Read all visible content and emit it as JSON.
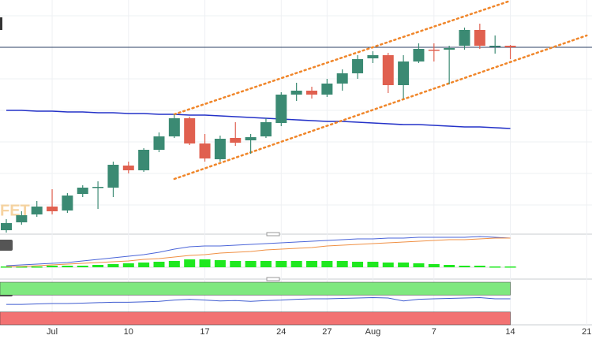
{
  "chart_data": {
    "type": "candlestick",
    "watermark": "FET",
    "categories": [
      null,
      null,
      null,
      "Jul",
      null,
      null,
      null,
      null,
      "10",
      null,
      null,
      null,
      null,
      "17",
      null,
      null,
      null,
      null,
      "24",
      null,
      null,
      "27",
      null,
      null,
      "Aug",
      null,
      null,
      null,
      "7",
      null,
      null,
      null,
      null,
      "14",
      null,
      null,
      null,
      null,
      "21"
    ],
    "ylim": [
      0,
      300
    ],
    "open": [
      8,
      18,
      28,
      38,
      33,
      54,
      63,
      62,
      90,
      84,
      110,
      127,
      150,
      118,
      98,
      125,
      122,
      127,
      144,
      180,
      185,
      180,
      194,
      207,
      226,
      230,
      192,
      222,
      237,
      237,
      242,
      262,
      242,
      242,
      null,
      null,
      null,
      null,
      null
    ],
    "high": [
      22,
      32,
      45,
      60,
      55,
      65,
      70,
      95,
      95,
      112,
      132,
      155,
      152,
      130,
      128,
      145,
      130,
      150,
      183,
      195,
      190,
      200,
      212,
      230,
      235,
      233,
      230,
      245,
      245,
      242,
      265,
      270,
      255,
      243,
      null,
      null,
      null,
      null,
      null
    ],
    "low": [
      5,
      15,
      25,
      28,
      30,
      50,
      35,
      50,
      80,
      82,
      107,
      125,
      116,
      95,
      95,
      115,
      105,
      125,
      140,
      172,
      175,
      177,
      185,
      200,
      220,
      182,
      175,
      220,
      222,
      193,
      237,
      238,
      232,
      225,
      null,
      null,
      null,
      null,
      null
    ],
    "close": [
      17,
      27,
      38,
      32,
      52,
      62,
      63,
      91,
      84,
      110,
      127,
      150,
      118,
      99,
      124,
      119,
      126,
      145,
      180,
      185,
      180,
      194,
      207,
      225,
      230,
      192,
      222,
      238,
      236,
      239,
      262,
      242,
      242,
      240,
      null,
      null,
      null,
      null,
      null
    ],
    "up_color": "#3b8a73",
    "down_color": "#e0604f",
    "moving_average": {
      "color": "#2432c8",
      "values": [
        160,
        160,
        159,
        159,
        158,
        158,
        157,
        157,
        156,
        156,
        155,
        155,
        154,
        154,
        153,
        152,
        151,
        150,
        149,
        148,
        147,
        146,
        146,
        145,
        144,
        143,
        142,
        142,
        141,
        140,
        139,
        139,
        138,
        137,
        null,
        null,
        null,
        null,
        null
      ]
    },
    "price_line": {
      "value": 240,
      "color": "#2b3f63"
    },
    "channel": {
      "color": "#f0862a",
      "upper": {
        "from": [
          11,
          155
        ],
        "to": [
          33,
          299
        ]
      },
      "lower": {
        "from": [
          11,
          73
        ],
        "to": [
          38,
          255
        ]
      }
    },
    "macd": {
      "ylim": [
        -13,
        41
      ],
      "histogram_color": "#1fe81f",
      "histogram": [
        1,
        1,
        1,
        2,
        2,
        2,
        3,
        4,
        5,
        6,
        7,
        8,
        10,
        10,
        9,
        8,
        8,
        8,
        8,
        8,
        8,
        8,
        8,
        7,
        7,
        6,
        6,
        5,
        4,
        3,
        2,
        2,
        1,
        1,
        null,
        null,
        null,
        null,
        null
      ],
      "series": [
        {
          "color": "#4a64d8",
          "values": [
            2,
            3,
            4,
            5,
            6,
            8,
            10,
            12,
            14,
            16,
            19,
            23,
            26,
            27,
            27,
            28,
            29,
            30,
            31,
            32,
            33,
            34,
            35,
            36,
            36,
            37,
            37,
            38,
            38,
            38,
            38,
            39,
            38,
            37,
            null,
            null,
            null,
            null,
            null
          ]
        },
        {
          "color": "#f09044",
          "values": [
            1,
            1,
            2,
            3,
            4,
            5,
            6,
            7,
            8,
            10,
            11,
            13,
            15,
            16,
            18,
            19,
            20,
            22,
            23,
            24,
            25,
            27,
            28,
            29,
            30,
            31,
            32,
            33,
            34,
            35,
            35,
            36,
            37,
            37,
            null,
            null,
            null,
            null,
            null
          ]
        }
      ]
    },
    "oscillator": {
      "ylim": [
        0,
        100
      ],
      "upper_band": [
        70,
        100
      ],
      "upper_color": "#7fe87f",
      "lower_band": [
        0,
        30
      ],
      "lower_color": "#f27272",
      "color": "#3f5cd0",
      "values": [
        48,
        48,
        49,
        50,
        50,
        51,
        52,
        53,
        53,
        54,
        55,
        58,
        60,
        58,
        56,
        57,
        55,
        57,
        58,
        60,
        61,
        61,
        62,
        63,
        64,
        63,
        56,
        60,
        61,
        62,
        63,
        64,
        61,
        61,
        null,
        null,
        null,
        null,
        null
      ]
    }
  }
}
